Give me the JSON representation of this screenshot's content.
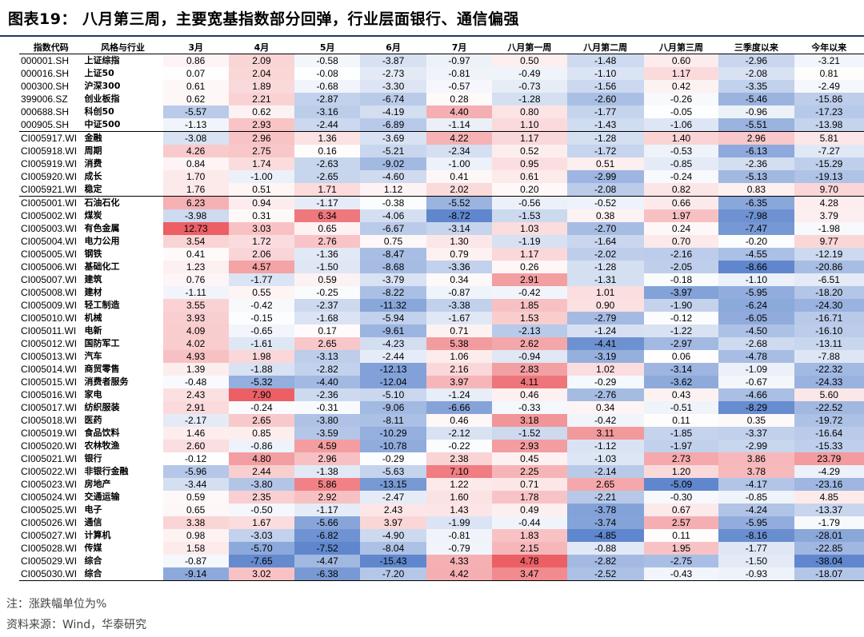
{
  "title": "图表19：  八月第三周，主要宽基指数部分回弹，行业层面银行、通信偏强",
  "footnote": "注：涨跌幅单位为%",
  "source": "资料来源：Wind，华泰研究",
  "colors": {
    "positive": "#e8434a",
    "negative": "#4472c4"
  },
  "chart_data": {
    "type": "table",
    "columns": [
      "指数代码",
      "风格与行业",
      "3月",
      "4月",
      "5月",
      "6月",
      "7月",
      "八月第一周",
      "八月第二周",
      "八月第三周",
      "三季度以来",
      "今年以来"
    ],
    "groups": [
      {
        "rows": [
          {
            "code": "000001.SH",
            "name": "上证综指",
            "values": [
              0.86,
              2.09,
              -0.58,
              -3.87,
              -0.97,
              0.5,
              -1.48,
              0.6,
              -2.96,
              -3.21
            ]
          },
          {
            "code": "000016.SH",
            "name": "上证50",
            "values": [
              0.07,
              2.04,
              -0.08,
              -2.73,
              -0.81,
              -0.49,
              -1.1,
              1.17,
              -2.08,
              0.81
            ]
          },
          {
            "code": "000300.SH",
            "name": "沪深300",
            "values": [
              0.61,
              1.89,
              -0.68,
              -3.3,
              -0.57,
              -0.73,
              -1.56,
              0.42,
              -3.35,
              -2.49
            ]
          },
          {
            "code": "399006.SZ",
            "name": "创业板指",
            "values": [
              0.62,
              2.21,
              -2.87,
              -6.74,
              0.28,
              -1.28,
              -2.6,
              -0.26,
              -5.46,
              -15.86
            ]
          },
          {
            "code": "000688.SH",
            "name": "科创50",
            "values": [
              -5.57,
              0.62,
              -3.16,
              -4.19,
              4.4,
              0.8,
              -1.77,
              -0.05,
              -0.96,
              -17.23
            ]
          },
          {
            "code": "000905.SH",
            "name": "中证500",
            "values": [
              -1.13,
              2.93,
              -2.44,
              -6.89,
              -1.14,
              1.1,
              -1.43,
              -1.06,
              -5.51,
              -13.98
            ]
          }
        ]
      },
      {
        "rows": [
          {
            "code": "CI005917.WI",
            "name": "金融",
            "values": [
              -3.08,
              2.96,
              1.36,
              -3.69,
              4.22,
              1.17,
              -1.28,
              1.4,
              2.96,
              5.81
            ]
          },
          {
            "code": "CI005918.WI",
            "name": "周期",
            "values": [
              4.26,
              2.75,
              0.16,
              -5.21,
              -2.34,
              0.52,
              -1.72,
              -0.53,
              -6.13,
              -7.27
            ]
          },
          {
            "code": "CI005919.WI",
            "name": "消费",
            "values": [
              0.84,
              1.74,
              -2.63,
              -9.02,
              -1.0,
              0.95,
              0.51,
              -0.85,
              -2.36,
              -15.29
            ]
          },
          {
            "code": "CI005920.WI",
            "name": "成长",
            "values": [
              1.7,
              -1.0,
              -2.65,
              -4.6,
              0.41,
              0.61,
              -2.99,
              -0.24,
              -5.13,
              -19.13
            ]
          },
          {
            "code": "CI005921.WI",
            "name": "稳定",
            "values": [
              1.76,
              0.51,
              1.71,
              1.12,
              2.02,
              0.2,
              -2.08,
              0.82,
              0.83,
              9.7
            ]
          }
        ]
      },
      {
        "rows": [
          {
            "code": "CI005001.WI",
            "name": "石油石化",
            "values": [
              6.23,
              0.94,
              -1.17,
              -0.38,
              -5.52,
              -0.56,
              -0.52,
              0.66,
              -6.35,
              4.28
            ]
          },
          {
            "code": "CI005002.WI",
            "name": "煤炭",
            "values": [
              -3.98,
              0.31,
              6.34,
              -4.06,
              -8.72,
              -1.53,
              0.38,
              1.97,
              -7.98,
              3.79
            ]
          },
          {
            "code": "CI005003.WI",
            "name": "有色金属",
            "values": [
              12.73,
              3.03,
              0.65,
              -6.67,
              -3.14,
              1.03,
              -2.7,
              0.24,
              -7.47,
              -1.98
            ]
          },
          {
            "code": "CI005004.WI",
            "name": "电力公用",
            "values": [
              3.54,
              1.72,
              2.76,
              0.75,
              1.3,
              -1.19,
              -1.64,
              0.7,
              -0.2,
              9.77
            ]
          },
          {
            "code": "CI005005.WI",
            "name": "钢铁",
            "values": [
              0.41,
              2.06,
              -1.36,
              -8.47,
              0.79,
              1.17,
              -2.02,
              -2.16,
              -4.55,
              -12.19
            ]
          },
          {
            "code": "CI005006.WI",
            "name": "基础化工",
            "values": [
              1.23,
              4.57,
              -1.5,
              -8.68,
              -3.36,
              0.26,
              -1.28,
              -2.05,
              -8.66,
              -20.86
            ]
          },
          {
            "code": "CI005007.WI",
            "name": "建筑",
            "values": [
              0.76,
              -1.77,
              0.59,
              -3.79,
              0.34,
              2.91,
              -1.31,
              -0.18,
              -1.1,
              -6.51
            ]
          },
          {
            "code": "CI005008.WI",
            "name": "建材",
            "values": [
              -1.11,
              0.55,
              -0.25,
              -8.22,
              -0.87,
              -0.42,
              1.01,
              -3.97,
              -5.95,
              -18.2
            ]
          },
          {
            "code": "CI005009.WI",
            "name": "轻工制造",
            "values": [
              3.55,
              -0.42,
              -2.37,
              -11.32,
              -3.38,
              1.85,
              0.9,
              -1.9,
              -6.24,
              -24.3
            ]
          },
          {
            "code": "CI005010.WI",
            "name": "机械",
            "values": [
              3.93,
              -0.15,
              -1.68,
              -5.94,
              -1.67,
              1.53,
              -2.79,
              -0.12,
              -6.05,
              -16.71
            ]
          },
          {
            "code": "CI005011.WI",
            "name": "电新",
            "values": [
              4.09,
              -0.65,
              0.17,
              -9.61,
              0.71,
              -2.13,
              -1.24,
              -1.22,
              -4.5,
              -16.1
            ]
          },
          {
            "code": "CI005012.WI",
            "name": "国防军工",
            "values": [
              4.02,
              -1.61,
              2.65,
              -4.23,
              5.38,
              2.62,
              -4.41,
              -2.97,
              -2.68,
              -13.11
            ]
          },
          {
            "code": "CI005013.WI",
            "name": "汽车",
            "values": [
              4.93,
              1.98,
              -3.13,
              -2.44,
              1.06,
              -0.94,
              -3.19,
              0.06,
              -4.78,
              -7.88
            ]
          },
          {
            "code": "CI005014.WI",
            "name": "商贸零售",
            "values": [
              1.39,
              -1.88,
              -2.82,
              -12.13,
              2.16,
              2.83,
              1.02,
              -3.14,
              -1.09,
              -22.32
            ]
          },
          {
            "code": "CI005015.WI",
            "name": "消费者服务",
            "values": [
              -0.48,
              -5.32,
              -4.4,
              -12.04,
              3.97,
              4.11,
              -0.29,
              -3.62,
              -0.67,
              -24.33
            ]
          },
          {
            "code": "CI005016.WI",
            "name": "家电",
            "values": [
              2.43,
              7.9,
              -2.36,
              -5.1,
              -1.24,
              0.46,
              -2.76,
              0.43,
              -4.66,
              5.6
            ]
          },
          {
            "code": "CI005017.WI",
            "name": "纺织服装",
            "values": [
              2.91,
              -0.24,
              -0.31,
              -9.06,
              -6.66,
              -0.33,
              0.34,
              -0.51,
              -8.29,
              -22.52
            ]
          },
          {
            "code": "CI005018.WI",
            "name": "医药",
            "values": [
              -2.17,
              2.65,
              -3.8,
              -8.11,
              0.46,
              3.18,
              -0.42,
              0.11,
              0.35,
              -19.72
            ]
          },
          {
            "code": "CI005019.WI",
            "name": "食品饮料",
            "values": [
              1.46,
              0.85,
              -3.59,
              -10.29,
              -2.12,
              -1.52,
              3.11,
              -1.85,
              -3.37,
              -16.64
            ]
          },
          {
            "code": "CI005020.WI",
            "name": "农林牧渔",
            "values": [
              2.6,
              -0.86,
              4.59,
              -10.78,
              -0.22,
              2.93,
              -1.12,
              -1.97,
              -2.99,
              -15.33
            ]
          },
          {
            "code": "CI005021.WI",
            "name": "银行",
            "values": [
              -0.12,
              4.8,
              2.96,
              -0.29,
              2.38,
              0.45,
              -1.03,
              2.73,
              3.86,
              23.79
            ]
          },
          {
            "code": "CI005022.WI",
            "name": "非银行金融",
            "values": [
              -5.96,
              2.44,
              -1.38,
              -5.63,
              7.1,
              2.25,
              -2.14,
              1.2,
              3.78,
              -4.29
            ]
          },
          {
            "code": "CI005023.WI",
            "name": "房地产",
            "values": [
              -3.44,
              -3.8,
              5.86,
              -13.15,
              1.22,
              0.71,
              2.65,
              -5.09,
              -4.17,
              -23.16
            ]
          },
          {
            "code": "CI005024.WI",
            "name": "交通运输",
            "values": [
              0.59,
              2.35,
              2.92,
              -2.47,
              1.6,
              1.78,
              -2.21,
              -0.3,
              -0.85,
              4.85
            ]
          },
          {
            "code": "CI005025.WI",
            "name": "电子",
            "values": [
              0.65,
              -0.5,
              -1.17,
              2.43,
              1.43,
              0.49,
              -3.78,
              0.67,
              -4.24,
              -13.37
            ]
          },
          {
            "code": "CI005026.WI",
            "name": "通信",
            "values": [
              3.38,
              1.67,
              -5.66,
              3.97,
              -1.99,
              -0.44,
              -3.74,
              2.57,
              -5.95,
              -1.79
            ]
          },
          {
            "code": "CI005027.WI",
            "name": "计算机",
            "values": [
              0.98,
              -3.03,
              -6.82,
              -4.9,
              -0.81,
              1.83,
              -4.85,
              0.11,
              -8.16,
              -28.01
            ]
          },
          {
            "code": "CI005028.WI",
            "name": "传媒",
            "values": [
              1.58,
              -5.7,
              -7.52,
              -8.04,
              -0.79,
              2.15,
              -0.88,
              1.95,
              -1.77,
              -22.85
            ]
          },
          {
            "code": "CI005029.WI",
            "name": "综合",
            "values": [
              -0.87,
              -7.65,
              -4.47,
              -15.43,
              4.33,
              4.78,
              -2.82,
              -2.75,
              -1.5,
              -38.04
            ]
          },
          {
            "code": "CI005030.WI",
            "name": "综合",
            "values": [
              -9.14,
              3.02,
              -6.38,
              -7.2,
              4.42,
              3.47,
              -2.52,
              -0.43,
              -0.93,
              -18.07
            ]
          }
        ]
      }
    ]
  }
}
